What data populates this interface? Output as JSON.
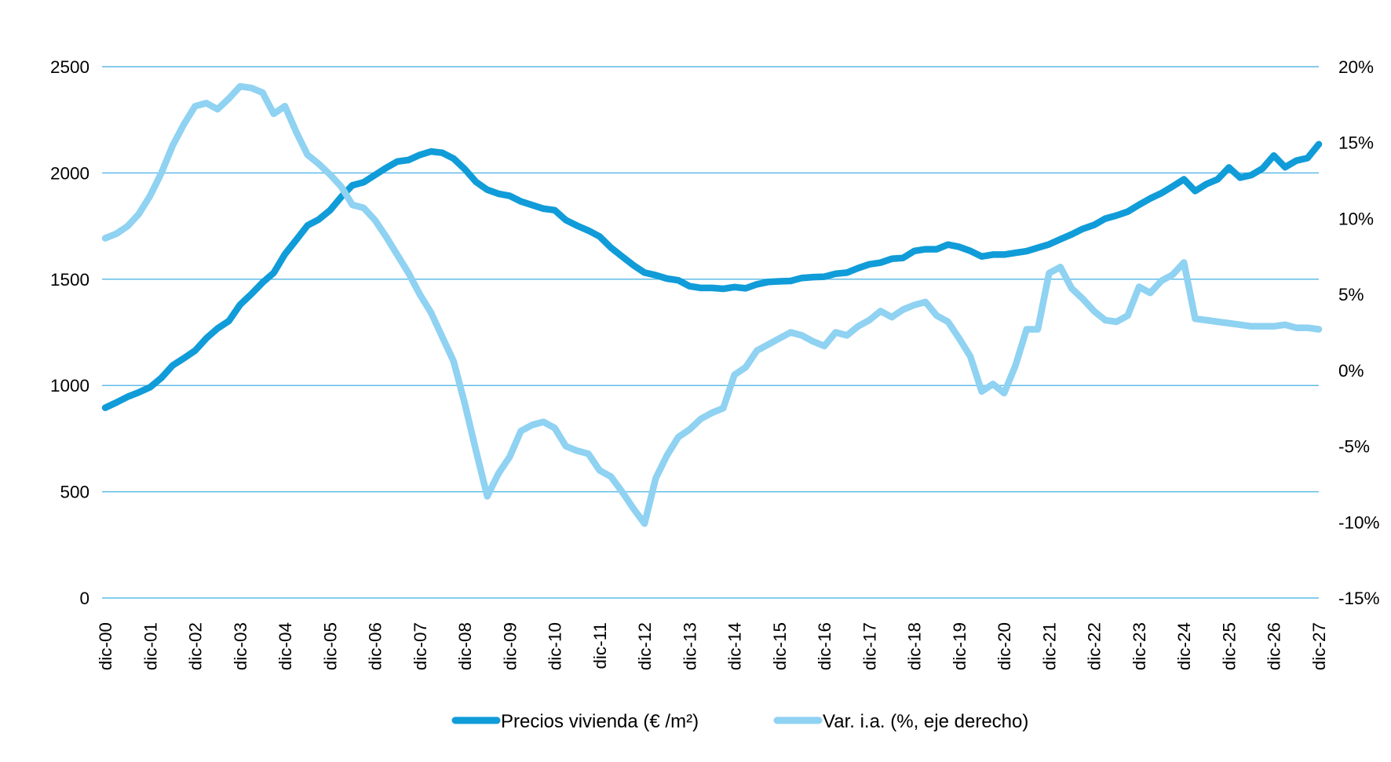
{
  "chart_data": {
    "type": "line",
    "title": "",
    "x_tick_labels": [
      "dic-00",
      "dic-01",
      "dic-02",
      "dic-03",
      "dic-04",
      "dic-05",
      "dic-06",
      "dic-07",
      "dic-08",
      "dic-09",
      "dic-10",
      "dic-11",
      "dic-12",
      "dic-13",
      "dic-14",
      "dic-15",
      "dic-16",
      "dic-17",
      "dic-18",
      "dic-19",
      "dic-20",
      "dic-21",
      "dic-22",
      "dic-23",
      "dic-24",
      "dic-25",
      "dic-26",
      "dic-27"
    ],
    "points_per_year": 4,
    "frequency_note": "quarterly points from dic-00 to dic-27",
    "grid": "horizontal-only",
    "legend_position": "bottom",
    "left_axis": {
      "ticks": [
        2500,
        2000,
        1500,
        1000,
        500,
        0
      ],
      "min": 0,
      "max": 2500
    },
    "right_axis": {
      "ticks": [
        "20%",
        "15%",
        "10%",
        "5%",
        "0%",
        "-5%",
        "-10%",
        "-15%"
      ],
      "min": -15,
      "max": 20
    },
    "series": [
      {
        "name": "Precios vivienda (€ /m²)",
        "axis": "left",
        "color": "#109CD8",
        "values": [
          895,
          920,
          947,
          968,
          992,
          1036,
          1094,
          1128,
          1164,
          1222,
          1268,
          1303,
          1380,
          1430,
          1484,
          1530,
          1618,
          1685,
          1753,
          1781,
          1824,
          1887,
          1942,
          1956,
          1990,
          2024,
          2054,
          2061,
          2085,
          2101,
          2095,
          2068,
          2018,
          1958,
          1921,
          1902,
          1892,
          1866,
          1849,
          1832,
          1825,
          1778,
          1752,
          1729,
          1701,
          1649,
          1607,
          1566,
          1531,
          1519,
          1503,
          1495,
          1467,
          1459,
          1459,
          1455,
          1463,
          1457,
          1476,
          1487,
          1490,
          1492,
          1506,
          1510,
          1512,
          1526,
          1531,
          1552,
          1570,
          1578,
          1596,
          1600,
          1633,
          1641,
          1641,
          1663,
          1652,
          1633,
          1607,
          1616,
          1616,
          1624,
          1632,
          1648,
          1664,
          1688,
          1711,
          1737,
          1755,
          1785,
          1800,
          1818,
          1850,
          1880,
          1905,
          1937,
          1970,
          1915,
          1948,
          1970,
          2026,
          1978,
          1990,
          2021,
          2082,
          2027,
          2058,
          2070,
          2135
        ]
      },
      {
        "name": "Var. i.a. (%, eje derecho)",
        "axis": "right",
        "color": "#8FD2F2",
        "values": [
          8.7,
          9.0,
          9.5,
          10.3,
          11.5,
          13.0,
          14.8,
          16.2,
          17.4,
          17.6,
          17.2,
          17.9,
          18.7,
          18.6,
          18.3,
          16.9,
          17.4,
          15.7,
          14.2,
          13.6,
          12.9,
          12.1,
          10.9,
          10.7,
          9.9,
          8.8,
          7.6,
          6.4,
          5.0,
          3.8,
          2.2,
          0.6,
          -2.2,
          -5.3,
          -8.3,
          -6.8,
          -5.7,
          -4.0,
          -3.6,
          -3.4,
          -3.8,
          -5.0,
          -5.3,
          -5.5,
          -6.6,
          -7.0,
          -8.0,
          -9.1,
          -10.1,
          -7.1,
          -5.6,
          -4.4,
          -3.9,
          -3.2,
          -2.8,
          -2.5,
          -0.3,
          0.2,
          1.3,
          1.7,
          2.1,
          2.5,
          2.3,
          1.9,
          1.6,
          2.5,
          2.3,
          2.9,
          3.3,
          3.9,
          3.5,
          4.0,
          4.3,
          4.5,
          3.6,
          3.2,
          2.1,
          0.9,
          -1.4,
          -0.9,
          -1.5,
          0.3,
          2.7,
          2.7,
          6.4,
          6.8,
          5.4,
          4.7,
          3.9,
          3.3,
          3.2,
          3.6,
          5.5,
          5.1,
          5.9,
          6.3,
          7.1,
          3.4,
          3.3,
          3.2,
          3.1,
          3.0,
          2.9,
          2.9,
          2.9,
          3.0,
          2.8,
          2.8,
          2.7
        ]
      }
    ]
  },
  "colors": {
    "background": "#FFFFFF",
    "gridline": "#5FBCE6",
    "text": "#000000",
    "series1": "#109CD8",
    "series2": "#8FD2F2"
  }
}
